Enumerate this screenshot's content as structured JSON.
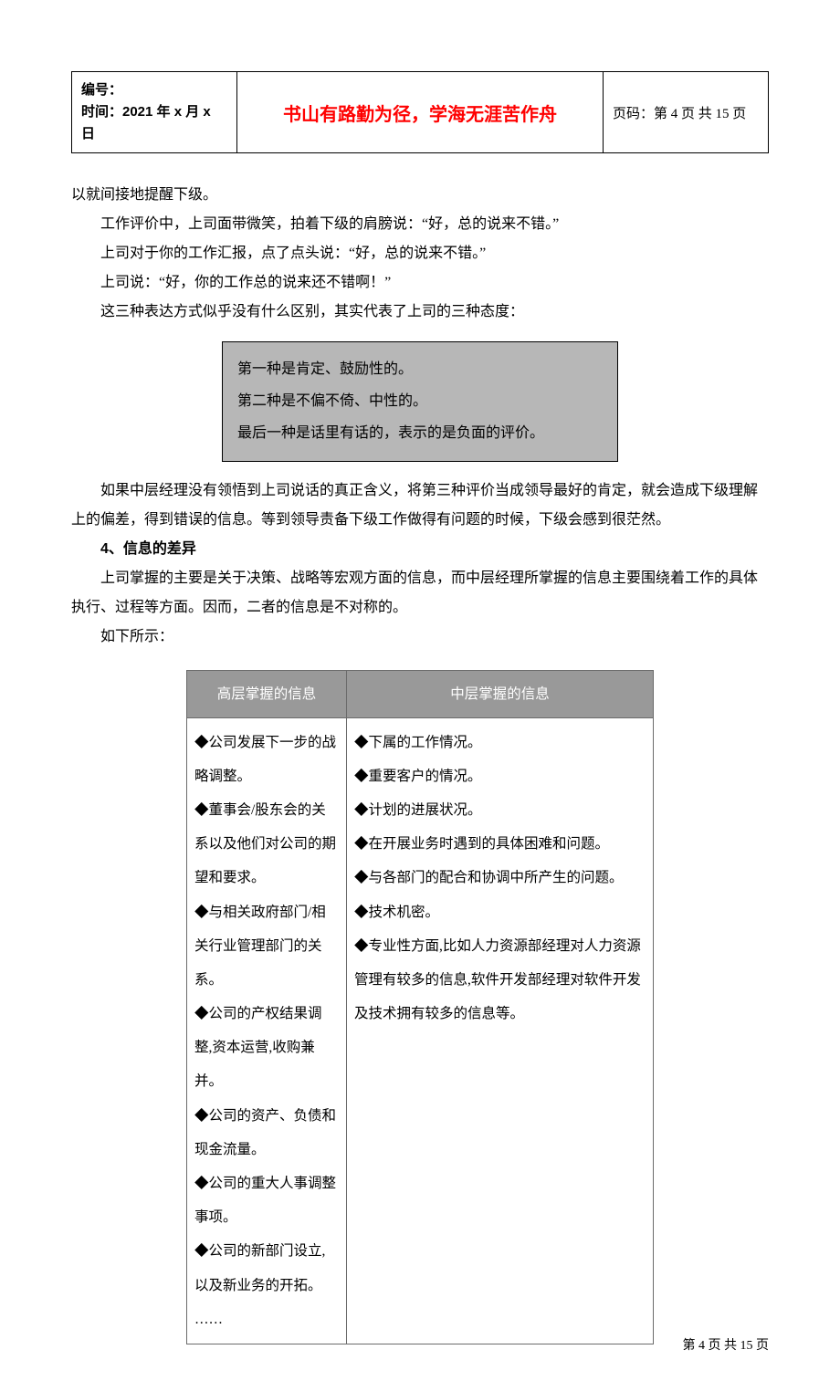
{
  "header": {
    "left_line1": "编号：",
    "left_line2": "时间：2021 年 x 月 x 日",
    "center": "书山有路勤为径，学海无涯苦作舟",
    "right": "页码：第 4 页 共 15 页"
  },
  "body": {
    "p1": "以就间接地提醒下级。",
    "p2": "工作评价中，上司面带微笑，拍着下级的肩膀说：“好，总的说来不错。”",
    "p3": "上司对于你的工作汇报，点了点头说：“好，总的说来不错。”",
    "p4": "上司说：“好，你的工作总的说来还不错啊！”",
    "p5": "这三种表达方式似乎没有什么区别，其实代表了上司的三种态度：",
    "box_line1": "第一种是肯定、鼓励性的。",
    "box_line2": "第二种是不偏不倚、中性的。",
    "box_line3": "最后一种是话里有话的，表示的是负面的评价。",
    "p6": "如果中层经理没有领悟到上司说话的真正含义，将第三种评价当成领导最好的肯定，就会造成下级理解上的偏差，得到错误的信息。等到领导责备下级工作做得有问题的时候，下级会感到很茫然。",
    "section4_title": "4、信息的差异",
    "p7": "上司掌握的主要是关于决策、战略等宏观方面的信息，而中层经理所掌握的信息主要围绕着工作的具体执行、过程等方面。因而，二者的信息是不对称的。",
    "p8": "如下所示："
  },
  "table": {
    "col1_header": "高层掌握的信息",
    "col2_header": "中层掌握的信息",
    "col1_body": "◆公司发展下一步的战略调整。\n◆董事会/股东会的关系以及他们对公司的期望和要求。\n◆与相关政府部门/相关行业管理部门的关系。\n◆公司的产权结果调整,资本运营,收购兼并。\n◆公司的资产、负债和现金流量。\n◆公司的重大人事调整事项。\n◆公司的新部门设立,以及新业务的开拓。\n……",
    "col2_body": "◆下属的工作情况。\n◆重要客户的情况。\n◆计划的进展状况。\n◆在开展业务时遇到的具体困难和问题。\n◆与各部门的配合和协调中所产生的问题。\n◆技术机密。\n◆专业性方面,比如人力资源部经理对人力资源管理有较多的信息,软件开发部经理对软件开发及技术拥有较多的信息等。"
  },
  "footer": "第 4 页 共 15 页",
  "colors": {
    "accent_red": "#ff0000",
    "box_bg": "#b7b7b7",
    "table_header_bg": "#999999",
    "table_header_text": "#ffffff",
    "table_border": "#6b6b6b"
  }
}
